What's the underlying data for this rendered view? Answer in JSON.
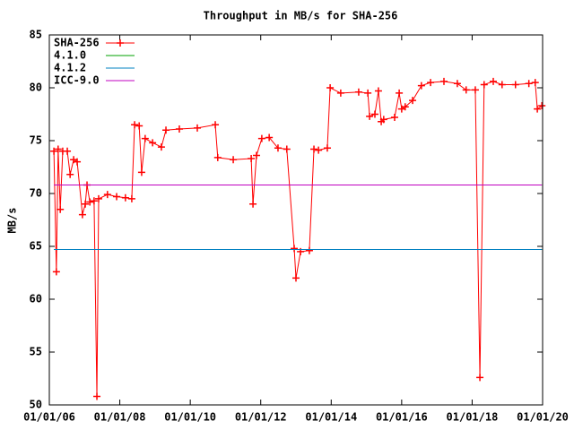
{
  "chart_data": {
    "type": "line",
    "title": "Throughput in MB/s for SHA-256",
    "y_label": "MB/s",
    "xlim": [
      2006,
      2020
    ],
    "xticks": [
      {
        "value": 2006,
        "label": "01/01/06"
      },
      {
        "value": 2008,
        "label": "01/01/08"
      },
      {
        "value": 2010,
        "label": "01/01/10"
      },
      {
        "value": 2012,
        "label": "01/01/12"
      },
      {
        "value": 2014,
        "label": "01/01/14"
      },
      {
        "value": 2016,
        "label": "01/01/16"
      },
      {
        "value": 2018,
        "label": "01/01/18"
      },
      {
        "value": 2020,
        "label": "01/01/20"
      }
    ],
    "ylim": [
      50,
      85
    ],
    "yticks": [
      50,
      55,
      60,
      65,
      70,
      75,
      80,
      85
    ],
    "legend": "top-left",
    "series": [
      {
        "name": "SHA-256",
        "color": "#ff0000",
        "markers": true,
        "x": [
          2006.13,
          2006.2,
          2006.25,
          2006.31,
          2006.38,
          2006.51,
          2006.59,
          2006.69,
          2006.79,
          2006.94,
          2007.02,
          2007.07,
          2007.15,
          2007.27,
          2007.35,
          2007.4,
          2007.65,
          2007.91,
          2008.16,
          2008.34,
          2008.42,
          2008.55,
          2008.62,
          2008.72,
          2008.93,
          2009.18,
          2009.31,
          2009.69,
          2010.2,
          2010.71,
          2010.78,
          2011.22,
          2011.73,
          2011.78,
          2011.88,
          2012.03,
          2012.24,
          2012.49,
          2012.74,
          2012.95,
          2013.0,
          2013.13,
          2013.38,
          2013.51,
          2013.64,
          2013.89,
          2013.97,
          2014.27,
          2014.78,
          2015.04,
          2015.09,
          2015.24,
          2015.34,
          2015.42,
          2015.49,
          2015.8,
          2015.93,
          2016.0,
          2016.1,
          2016.31,
          2016.56,
          2016.82,
          2017.2,
          2017.58,
          2017.83,
          2018.09,
          2018.22,
          2018.34,
          2018.6,
          2018.85,
          2019.23,
          2019.61,
          2019.79,
          2019.85,
          2019.98
        ],
        "values": [
          74.0,
          62.6,
          74.2,
          68.5,
          74.0,
          74.0,
          71.8,
          73.2,
          73.0,
          68.0,
          69.0,
          70.8,
          69.2,
          69.3,
          50.8,
          69.5,
          69.9,
          69.7,
          69.6,
          69.5,
          76.5,
          76.4,
          72.0,
          75.2,
          74.8,
          74.4,
          76.0,
          76.1,
          76.2,
          76.5,
          73.4,
          73.2,
          73.3,
          69.0,
          73.6,
          75.2,
          75.3,
          74.3,
          74.2,
          64.8,
          62.0,
          64.5,
          64.6,
          74.2,
          74.1,
          74.3,
          80.0,
          79.5,
          79.6,
          79.5,
          77.3,
          77.5,
          79.7,
          76.8,
          77.0,
          77.2,
          79.5,
          78.0,
          78.2,
          78.8,
          80.2,
          80.5,
          80.6,
          80.4,
          79.8,
          79.8,
          52.6,
          80.3,
          80.6,
          80.3,
          80.3,
          80.4,
          80.5,
          78.0,
          78.3
        ]
      },
      {
        "name": "4.1.0",
        "color": "#00a000",
        "x": [
          2006.13,
          2019.98
        ],
        "values": [
          64.7,
          64.7
        ]
      },
      {
        "name": "4.1.2",
        "color": "#0080c0",
        "x": [
          2006.13,
          2019.98
        ],
        "values": [
          64.7,
          64.7
        ]
      },
      {
        "name": "ICC-9.0",
        "color": "#c000c0",
        "x": [
          2006.13,
          2019.98
        ],
        "values": [
          70.8,
          70.8
        ]
      }
    ]
  }
}
